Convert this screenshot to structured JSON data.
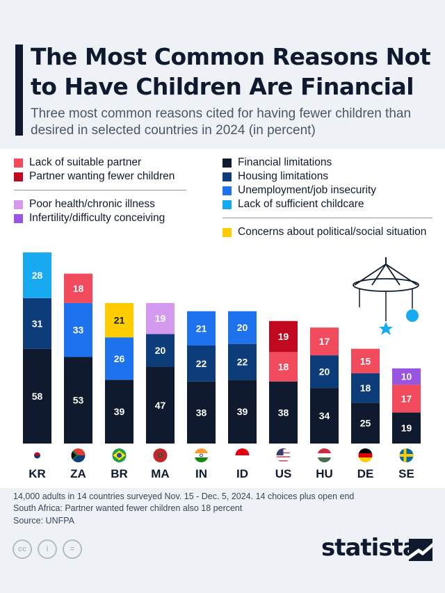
{
  "title": "The Most Common Reasons Not to Have Children Are Financial",
  "subtitle": "Three most common reasons cited for having fewer children than desired in selected countries in 2024 (in percent)",
  "colors": {
    "lack_partner": "#f34b5e",
    "partner_fewer": "#c0091e",
    "poor_health": "#d49af0",
    "infertility": "#9a55e0",
    "financial": "#0f1a2e",
    "housing": "#0d3c7b",
    "unemployment": "#1f72ee",
    "childcare": "#18aaf0",
    "political": "#ffcc00"
  },
  "legend": {
    "left": [
      {
        "key": "lack_partner",
        "label": "Lack of suitable partner"
      },
      {
        "key": "partner_fewer",
        "label": "Partner wanting fewer children"
      },
      {
        "key": "poor_health",
        "label": "Poor health/chronic illness"
      },
      {
        "key": "infertility",
        "label": "Infertility/difficulty conceiving"
      }
    ],
    "right": [
      {
        "key": "financial",
        "label": "Financial limitations"
      },
      {
        "key": "housing",
        "label": "Housing limitations"
      },
      {
        "key": "unemployment",
        "label": "Unemployment/job insecurity"
      },
      {
        "key": "childcare",
        "label": "Lack of sufficient childcare"
      },
      {
        "key": "political",
        "label": "Concerns about political/social situation"
      }
    ]
  },
  "chart_data": {
    "type": "bar",
    "stacked": true,
    "categories": [
      "KR",
      "ZA",
      "BR",
      "MA",
      "IN",
      "ID",
      "US",
      "HU",
      "DE",
      "SE"
    ],
    "stacks": [
      [
        {
          "key": "financial",
          "value": 58
        },
        {
          "key": "housing",
          "value": 31
        },
        {
          "key": "childcare",
          "value": 28
        }
      ],
      [
        {
          "key": "financial",
          "value": 53
        },
        {
          "key": "unemployment",
          "value": 33
        },
        {
          "key": "lack_partner",
          "value": 18
        }
      ],
      [
        {
          "key": "financial",
          "value": 39
        },
        {
          "key": "unemployment",
          "value": 26
        },
        {
          "key": "political",
          "value": 21
        }
      ],
      [
        {
          "key": "financial",
          "value": 47
        },
        {
          "key": "housing",
          "value": 20
        },
        {
          "key": "poor_health",
          "value": 19
        }
      ],
      [
        {
          "key": "financial",
          "value": 38
        },
        {
          "key": "housing",
          "value": 22
        },
        {
          "key": "unemployment",
          "value": 21
        }
      ],
      [
        {
          "key": "financial",
          "value": 39
        },
        {
          "key": "housing",
          "value": 22
        },
        {
          "key": "unemployment",
          "value": 20
        }
      ],
      [
        {
          "key": "financial",
          "value": 38
        },
        {
          "key": "lack_partner",
          "value": 18
        },
        {
          "key": "partner_fewer",
          "value": 19
        }
      ],
      [
        {
          "key": "financial",
          "value": 34
        },
        {
          "key": "housing",
          "value": 20
        },
        {
          "key": "lack_partner",
          "value": 17
        }
      ],
      [
        {
          "key": "financial",
          "value": 25
        },
        {
          "key": "housing",
          "value": 18
        },
        {
          "key": "lack_partner",
          "value": 15
        }
      ],
      [
        {
          "key": "financial",
          "value": 19
        },
        {
          "key": "lack_partner",
          "value": 17
        },
        {
          "key": "infertility",
          "value": 10
        }
      ]
    ],
    "flags": [
      "kr",
      "za",
      "br",
      "ma",
      "in",
      "id",
      "us",
      "hu",
      "de",
      "se"
    ]
  },
  "notes": {
    "line1": "14,000 adults in 14 countries surveyed Nov. 15 - Dec. 5, 2024. 14 choices plus open end",
    "line2": "South Africa: Partner wanted fewer children also 18 percent",
    "source": "Source: UNFPA"
  },
  "license_icons": {
    "cc": "cc",
    "by": "i",
    "nd": "="
  },
  "brand": "statista"
}
